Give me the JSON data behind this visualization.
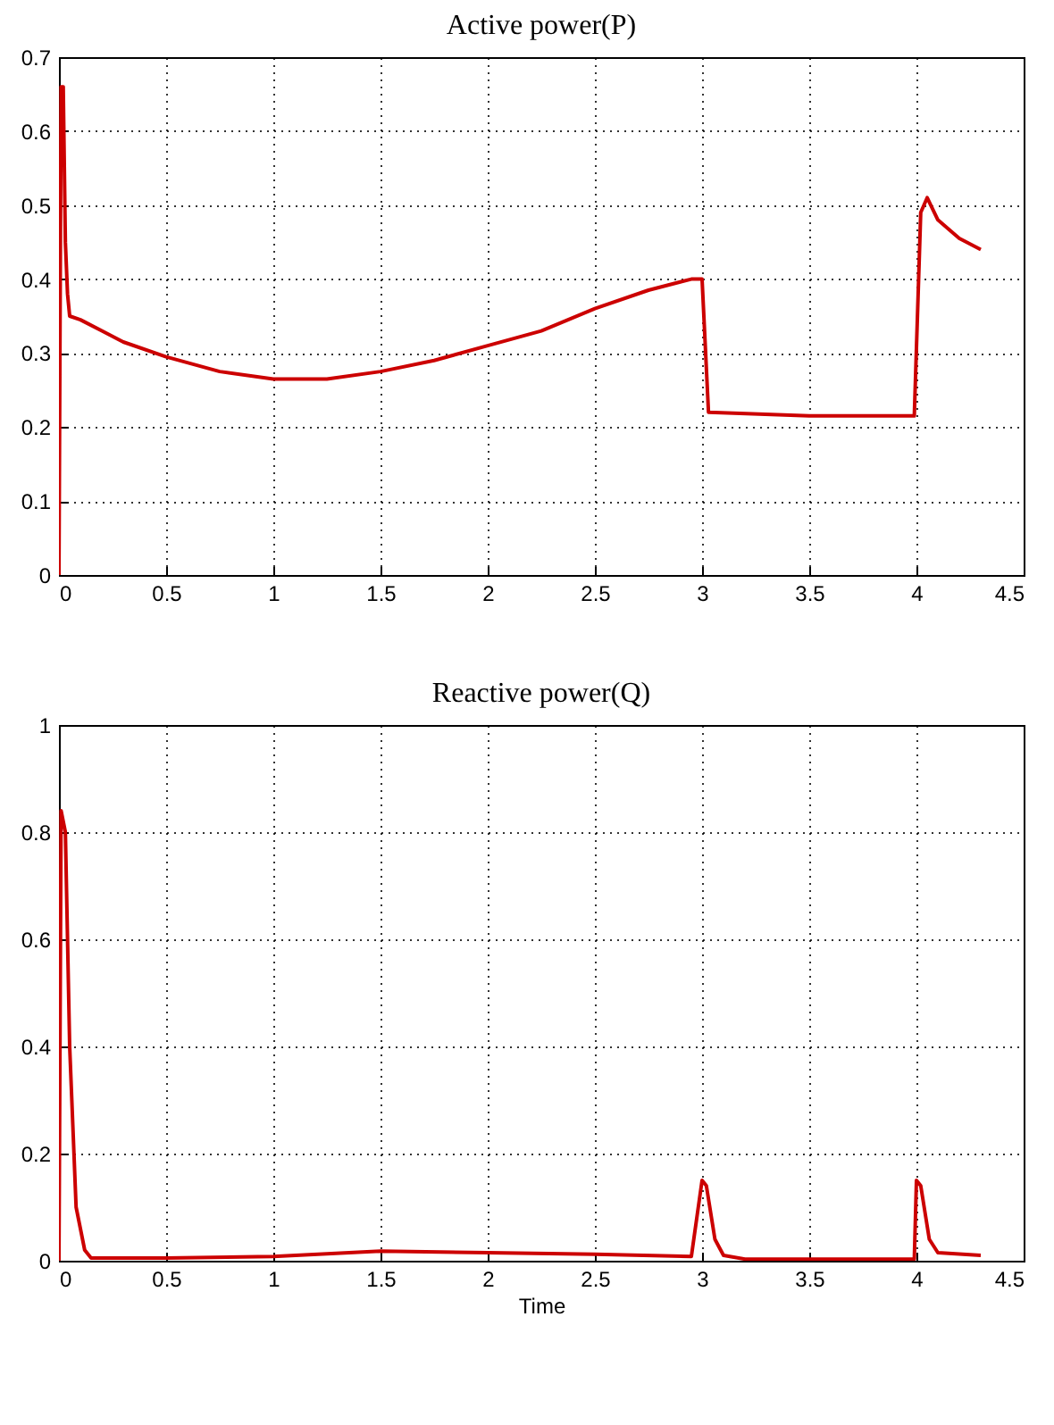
{
  "chart_data": [
    {
      "type": "line",
      "title": "Active power(P)",
      "x": [
        0,
        0.01,
        0.02,
        0.03,
        0.04,
        0.05,
        0.1,
        0.2,
        0.3,
        0.5,
        0.75,
        1,
        1.25,
        1.5,
        1.75,
        2,
        2.25,
        2.5,
        2.75,
        2.95,
        3.0,
        3.03,
        3.5,
        3.99,
        4.02,
        4.05,
        4.1,
        4.2,
        4.3
      ],
      "series": [
        {
          "color": "#cc0000",
          "values": [
            0,
            0.66,
            0.66,
            0.45,
            0.38,
            0.35,
            0.345,
            0.33,
            0.315,
            0.295,
            0.275,
            0.265,
            0.265,
            0.275,
            0.29,
            0.31,
            0.33,
            0.36,
            0.385,
            0.4,
            0.4,
            0.22,
            0.215,
            0.215,
            0.49,
            0.51,
            0.48,
            0.455,
            0.44
          ]
        }
      ],
      "xlim": [
        0,
        4.5
      ],
      "xticks": [
        0,
        0.5,
        1,
        1.5,
        2,
        2.5,
        3,
        3.5,
        4,
        4.5
      ],
      "ylim": [
        0,
        0.7
      ],
      "yticks": [
        0,
        0.1,
        0.2,
        0.3,
        0.4,
        0.5,
        0.6,
        0.7
      ],
      "grid": true,
      "line_style": "solid"
    },
    {
      "type": "line",
      "title": "Reactive power(Q)",
      "xlabel": "Time",
      "x": [
        0,
        0.01,
        0.03,
        0.05,
        0.08,
        0.12,
        0.15,
        0.5,
        1,
        1.5,
        2,
        2.5,
        2.95,
        3.0,
        3.02,
        3.06,
        3.1,
        3.2,
        3.5,
        3.99,
        4.0,
        4.02,
        4.06,
        4.1,
        4.3
      ],
      "series": [
        {
          "color": "#cc0000",
          "values": [
            0,
            0.84,
            0.8,
            0.4,
            0.1,
            0.02,
            0.005,
            0.005,
            0.008,
            0.018,
            0.015,
            0.012,
            0.008,
            0.15,
            0.14,
            0.04,
            0.01,
            0.003,
            0.003,
            0.003,
            0.15,
            0.14,
            0.04,
            0.015,
            0.01
          ]
        }
      ],
      "xlim": [
        0,
        4.5
      ],
      "xticks": [
        0,
        0.5,
        1,
        1.5,
        2,
        2.5,
        3,
        3.5,
        4,
        4.5
      ],
      "ylim": [
        0,
        1
      ],
      "yticks": [
        0,
        0.2,
        0.4,
        0.6,
        0.8,
        1
      ],
      "grid": true,
      "line_style": "solid"
    }
  ]
}
